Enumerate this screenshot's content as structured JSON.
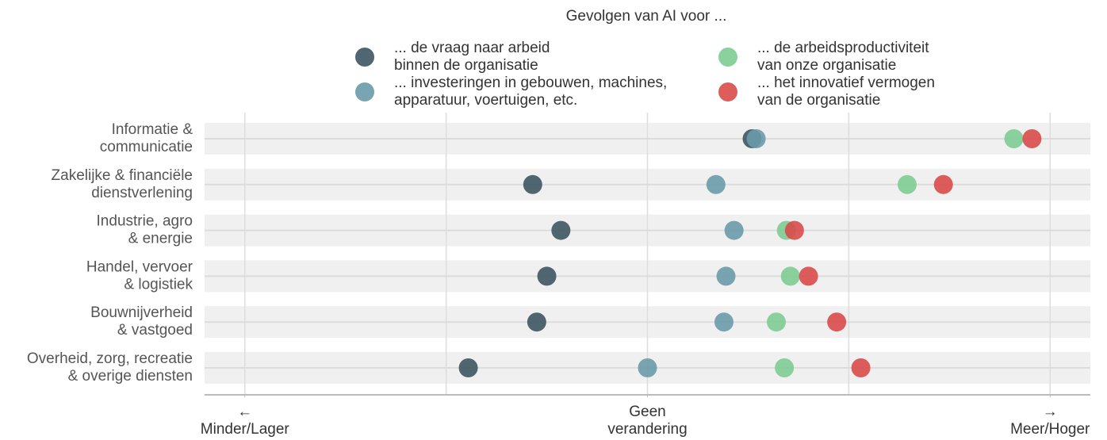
{
  "chart_data": {
    "type": "dot",
    "title": "Gevolgen van AI voor ...",
    "categories": [
      "Informatie &\ncommunicatie",
      "Zakelijke & financiële\ndienstverlening",
      "Industrie, agro\n& energie",
      "Handel, vervoer\n& logistiek",
      "Bouwnijverheid\n& vastgoed",
      "Overheid, zorg, recreatie\n& overige diensten"
    ],
    "series": [
      {
        "name": "... de vraag naar arbeid\nbinnen de organisatie",
        "color": "#3d5560",
        "values": [
          0.52,
          -0.57,
          -0.43,
          -0.5,
          -0.55,
          -0.89
        ]
      },
      {
        "name": "... investeringen in gebouwen, machines,\napparatuur, voertuigen, etc.",
        "color": "#6a9aaa",
        "values": [
          0.54,
          0.34,
          0.43,
          0.39,
          0.38,
          0.0
        ]
      },
      {
        "name": "... de arbeidsproductiviteit\nvan onze organisatie",
        "color": "#7dcc92",
        "values": [
          1.82,
          1.29,
          0.69,
          0.71,
          0.64,
          0.68
        ]
      },
      {
        "name": "... het innovatief vermogen\nvan de organisatie",
        "color": "#d94a4a",
        "values": [
          1.91,
          1.47,
          0.73,
          0.8,
          0.94,
          1.06
        ]
      }
    ],
    "xlim": [
      -2.2,
      2.2
    ],
    "xgrid": [
      -2,
      -1,
      0,
      1,
      2
    ],
    "xticks": [
      {
        "value": -2,
        "label": "←\nMinder/Lager"
      },
      {
        "value": 0,
        "label": "Geen\nverandering"
      },
      {
        "value": 2,
        "label": "→\nMeer/Hoger"
      }
    ]
  }
}
